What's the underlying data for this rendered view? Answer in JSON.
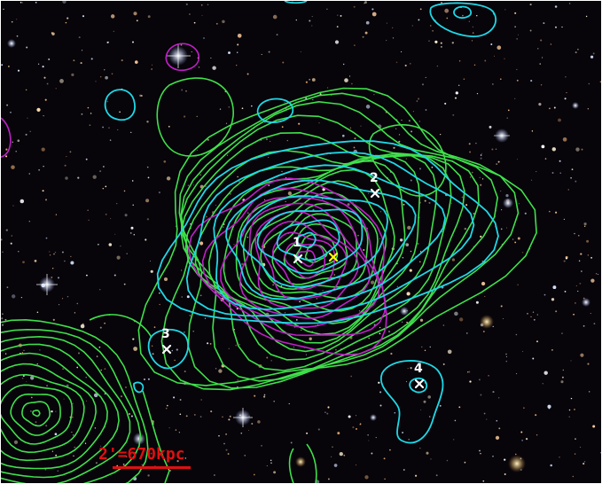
{
  "image": {
    "description_kind": "optical sky image with contour overlays",
    "background_color": "#07040a"
  },
  "contours": {
    "green_color": "#3fe04a",
    "cyan_color": "#1fd8e6",
    "magenta_color": "#c020c8"
  },
  "markers": [
    {
      "id": "1",
      "label": "1",
      "color": "#ffffff"
    },
    {
      "id": "2",
      "label": "2",
      "color": "#ffffff"
    },
    {
      "id": "3",
      "label": "3",
      "color": "#ffffff"
    },
    {
      "id": "4",
      "label": "4",
      "color": "#ffffff"
    },
    {
      "id": "centroid",
      "label": "",
      "color": "#ffff00"
    }
  ],
  "scale_bar": {
    "label": "2'=670kpc",
    "color": "#e01010"
  }
}
